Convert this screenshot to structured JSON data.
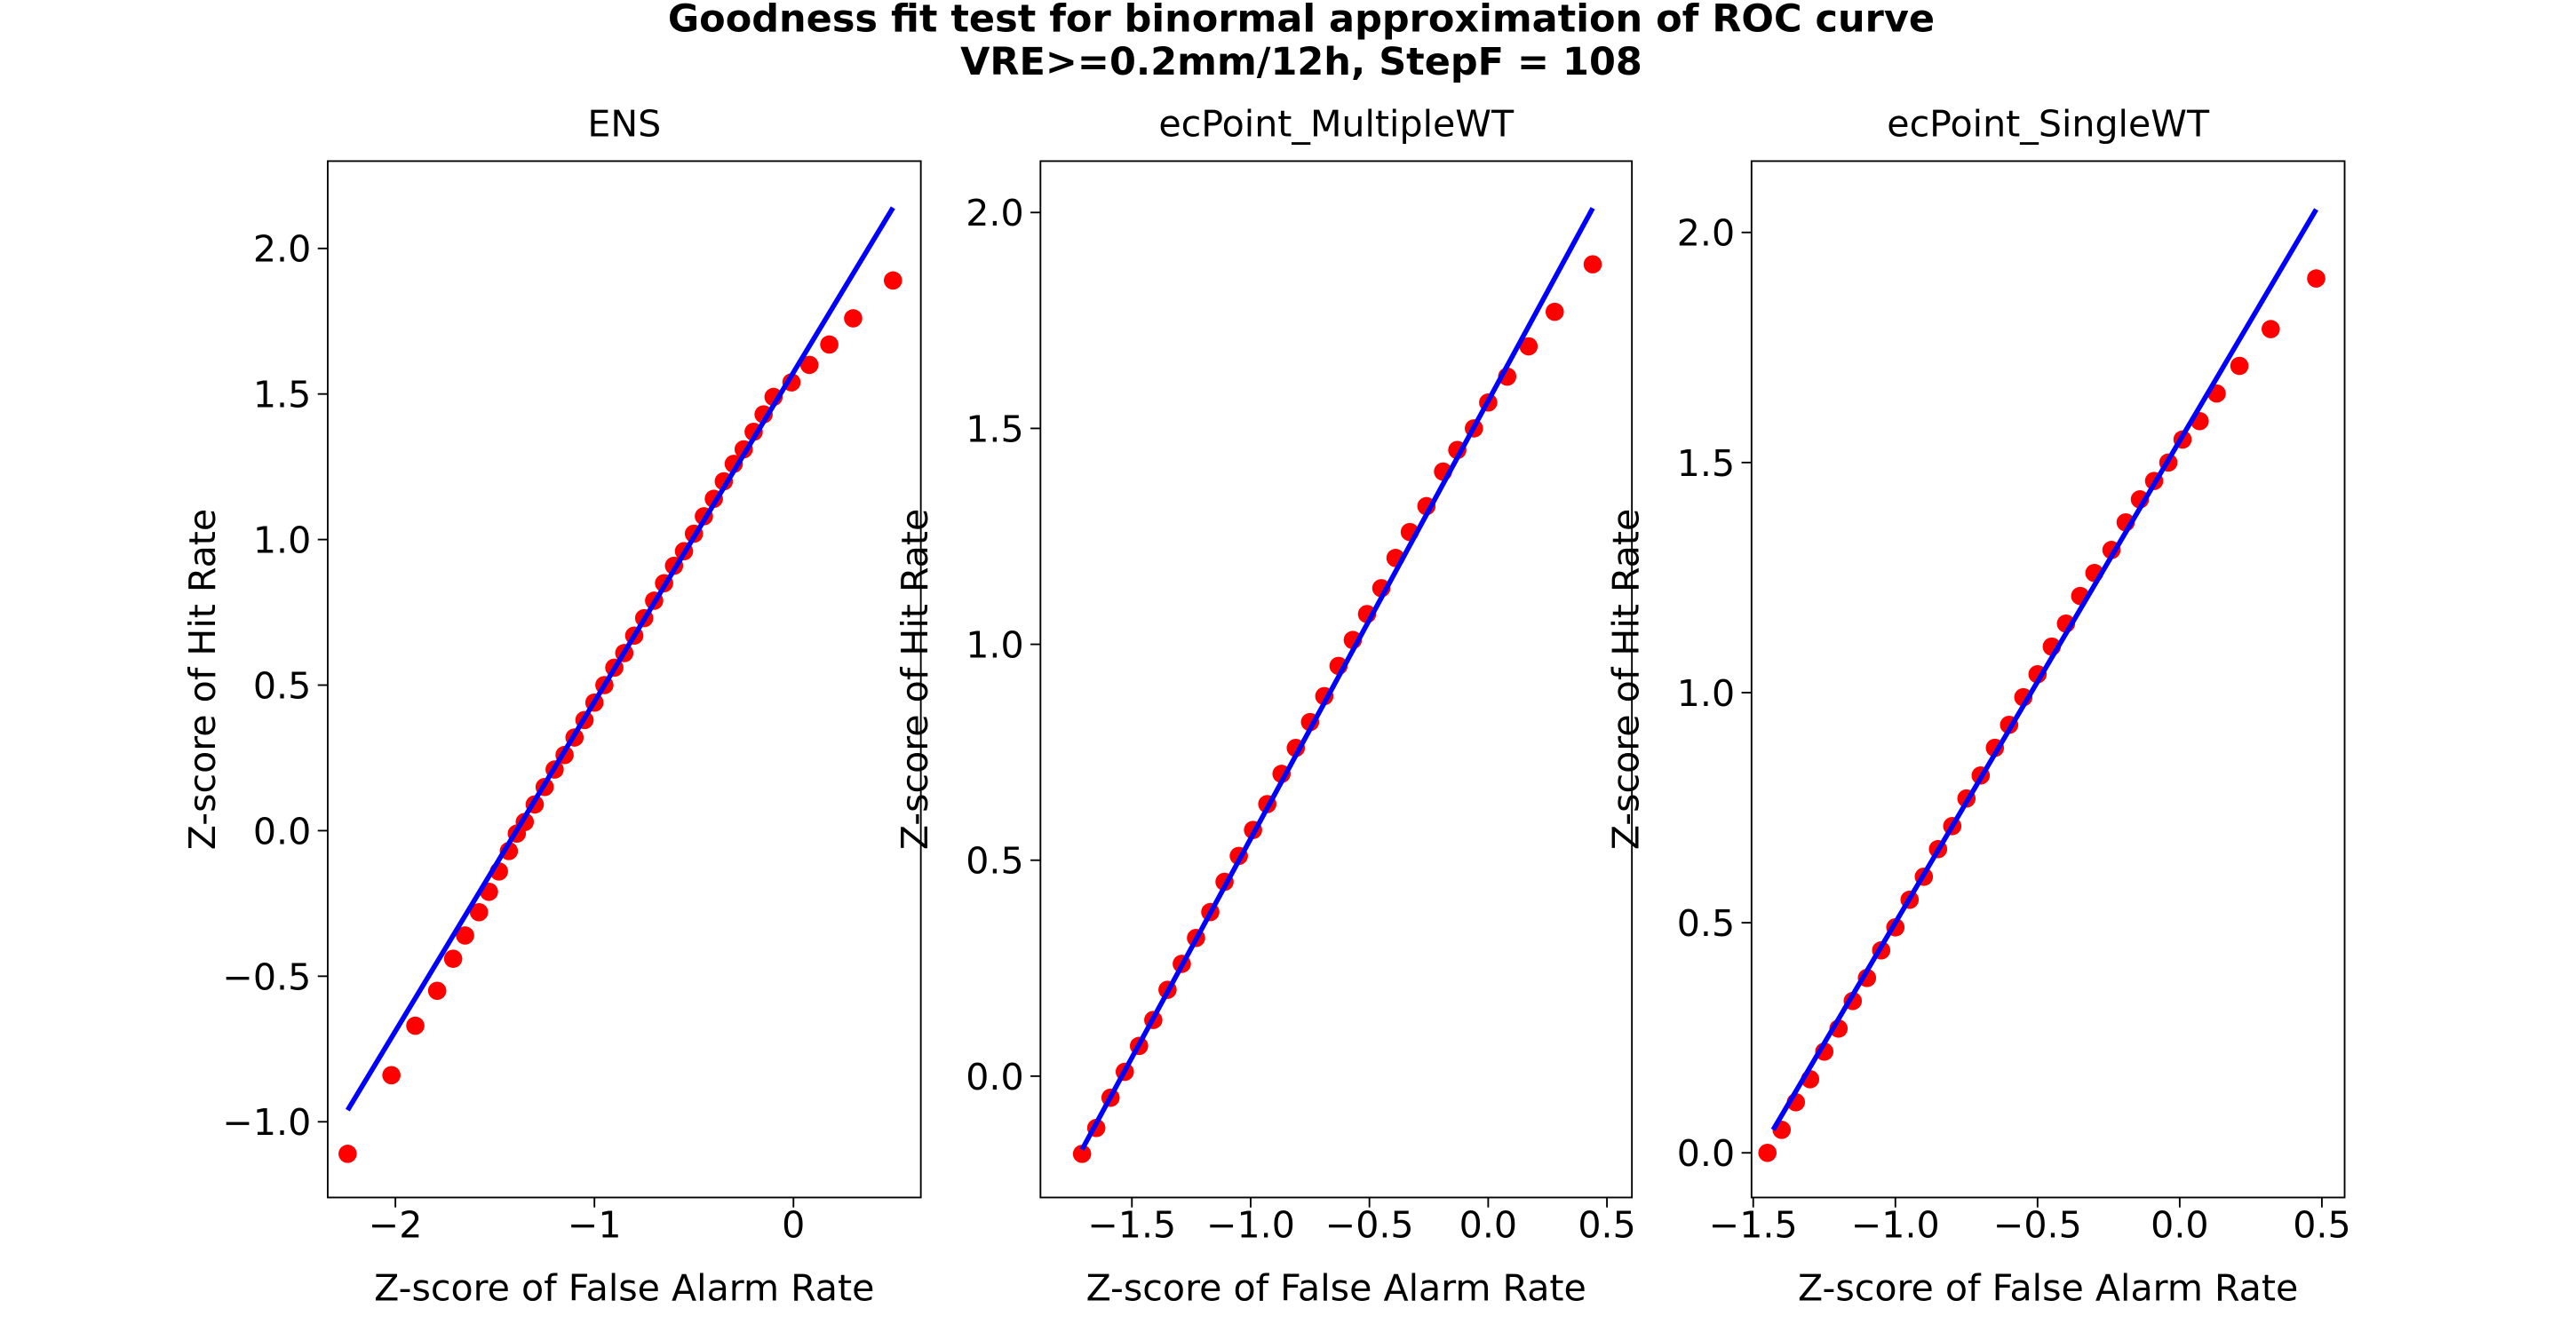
{
  "title": "Goodness fit test for binormal approximation of ROC curve",
  "subtitle": "VRE>=0.2mm/12h, StepF = 108",
  "chart_data": [
    {
      "type": "scatter",
      "title": "ENS",
      "x_label": "Z-score of False Alarm Rate",
      "y_label": "Z-score of Hit Rate",
      "xlim": [
        -2.34,
        0.64
      ],
      "ylim": [
        -1.26,
        2.3
      ],
      "xticks": [
        {
          "value": -2,
          "label": "−2"
        },
        {
          "value": -1,
          "label": "−1"
        },
        0
      ],
      "yticks": [
        {
          "value": -1,
          "label": "−1.0"
        },
        {
          "value": -0.5,
          "label": "−0.5"
        },
        {
          "value": 0,
          "label": "0.0"
        },
        0.5,
        {
          "value": 1,
          "label": "1.0"
        },
        1.5,
        {
          "value": 2,
          "label": "2.0"
        }
      ],
      "series": [
        {
          "mode": "points",
          "color": "#ff0000",
          "x": [
            -2.24,
            -2.02,
            -1.9,
            -1.79,
            -1.71,
            -1.65,
            -1.58,
            -1.53,
            -1.48,
            -1.43,
            -1.39,
            -1.35,
            -1.3,
            -1.25,
            -1.2,
            -1.15,
            -1.1,
            -1.05,
            -1.0,
            -0.95,
            -0.9,
            -0.85,
            -0.8,
            -0.75,
            -0.7,
            -0.65,
            -0.6,
            -0.55,
            -0.5,
            -0.45,
            -0.4,
            -0.35,
            -0.3,
            -0.25,
            -0.2,
            -0.15,
            -0.1,
            -0.01,
            0.08,
            0.18,
            0.3,
            0.5
          ],
          "values": [
            -1.11,
            -0.84,
            -0.67,
            -0.55,
            -0.44,
            -0.36,
            -0.28,
            -0.21,
            -0.14,
            -0.07,
            -0.01,
            0.03,
            0.09,
            0.15,
            0.21,
            0.26,
            0.32,
            0.38,
            0.44,
            0.5,
            0.56,
            0.61,
            0.67,
            0.73,
            0.79,
            0.85,
            0.91,
            0.96,
            1.02,
            1.08,
            1.14,
            1.2,
            1.26,
            1.31,
            1.37,
            1.43,
            1.49,
            1.54,
            1.6,
            1.67,
            1.76,
            1.89
          ]
        },
        {
          "mode": "line",
          "color": "#0000ff",
          "x": [
            -2.24,
            0.5
          ],
          "values": [
            -0.96,
            2.14
          ]
        }
      ]
    },
    {
      "type": "scatter",
      "title": "ecPoint_MultipleWT",
      "x_label": "Z-score of False Alarm Rate",
      "y_label": "Z-score of Hit Rate",
      "xlim": [
        -1.885,
        0.605
      ],
      "ylim": [
        -0.281,
        2.119
      ],
      "xticks": [
        {
          "value": -1.5,
          "label": "−1.5"
        },
        {
          "value": -1,
          "label": "−1.0"
        },
        {
          "value": -0.5,
          "label": "−0.5"
        },
        {
          "value": 0,
          "label": "0.0"
        },
        0.5
      ],
      "yticks": [
        {
          "value": 0,
          "label": "0.0"
        },
        0.5,
        {
          "value": 1,
          "label": "1.0"
        },
        1.5,
        {
          "value": 2,
          "label": "2.0"
        }
      ],
      "series": [
        {
          "mode": "points",
          "color": "#ff0000",
          "x": [
            -1.71,
            -1.65,
            -1.59,
            -1.53,
            -1.47,
            -1.41,
            -1.35,
            -1.29,
            -1.23,
            -1.17,
            -1.11,
            -1.05,
            -0.99,
            -0.93,
            -0.87,
            -0.81,
            -0.75,
            -0.69,
            -0.63,
            -0.57,
            -0.51,
            -0.45,
            -0.39,
            -0.33,
            -0.26,
            -0.19,
            -0.13,
            -0.06,
            0.0,
            0.08,
            0.17,
            0.28,
            0.44
          ],
          "values": [
            -0.18,
            -0.12,
            -0.05,
            0.01,
            0.07,
            0.13,
            0.2,
            0.26,
            0.32,
            0.38,
            0.45,
            0.51,
            0.57,
            0.63,
            0.7,
            0.76,
            0.82,
            0.88,
            0.95,
            1.01,
            1.07,
            1.13,
            1.2,
            1.26,
            1.32,
            1.4,
            1.45,
            1.5,
            1.56,
            1.62,
            1.69,
            1.77,
            1.88
          ]
        },
        {
          "mode": "line",
          "color": "#0000ff",
          "x": [
            -1.71,
            0.44
          ],
          "values": [
            -0.17,
            2.01
          ]
        }
      ]
    },
    {
      "type": "scatter",
      "title": "ecPoint_SingleWT",
      "x_label": "Z-score of False Alarm Rate",
      "y_label": "Z-score of Hit Rate",
      "xlim": [
        -1.506,
        0.58
      ],
      "ylim": [
        -0.097,
        2.155
      ],
      "xticks": [
        {
          "value": -1.5,
          "label": "−1.5"
        },
        {
          "value": -1,
          "label": "−1.0"
        },
        {
          "value": -0.5,
          "label": "−0.5"
        },
        {
          "value": 0,
          "label": "0.0"
        },
        0.5
      ],
      "yticks": [
        {
          "value": 0,
          "label": "0.0"
        },
        0.5,
        {
          "value": 1,
          "label": "1.0"
        },
        1.5,
        {
          "value": 2,
          "label": "2.0"
        }
      ],
      "series": [
        {
          "mode": "points",
          "color": "#ff0000",
          "x": [
            -1.45,
            -1.4,
            -1.35,
            -1.3,
            -1.25,
            -1.2,
            -1.15,
            -1.1,
            -1.05,
            -1.0,
            -0.95,
            -0.9,
            -0.85,
            -0.8,
            -0.75,
            -0.7,
            -0.65,
            -0.6,
            -0.55,
            -0.5,
            -0.45,
            -0.4,
            -0.35,
            -0.3,
            -0.24,
            -0.19,
            -0.14,
            -0.09,
            -0.04,
            0.01,
            0.07,
            0.13,
            0.21,
            0.32,
            0.48
          ],
          "values": [
            0.0,
            0.05,
            0.11,
            0.16,
            0.22,
            0.27,
            0.33,
            0.38,
            0.44,
            0.49,
            0.55,
            0.6,
            0.66,
            0.71,
            0.77,
            0.82,
            0.88,
            0.93,
            0.99,
            1.04,
            1.1,
            1.15,
            1.21,
            1.26,
            1.31,
            1.37,
            1.42,
            1.46,
            1.5,
            1.55,
            1.59,
            1.65,
            1.71,
            1.79,
            1.9
          ]
        },
        {
          "mode": "line",
          "color": "#0000ff",
          "x": [
            -1.43,
            0.48
          ],
          "values": [
            0.05,
            2.05
          ]
        }
      ]
    }
  ]
}
